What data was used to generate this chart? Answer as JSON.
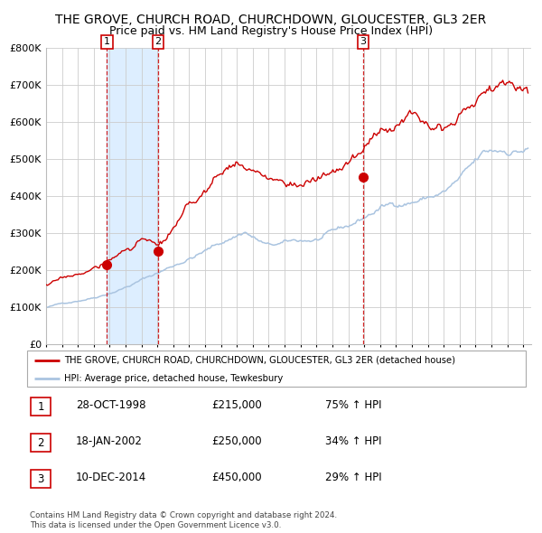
{
  "title": "THE GROVE, CHURCH ROAD, CHURCHDOWN, GLOUCESTER, GL3 2ER",
  "subtitle": "Price paid vs. HM Land Registry's House Price Index (HPI)",
  "title_fontsize": 10,
  "subtitle_fontsize": 9,
  "background_color": "#ffffff",
  "plot_bg_color": "#ffffff",
  "grid_color": "#cccccc",
  "hpi_line_color": "#aac4e0",
  "price_line_color": "#cc0000",
  "sale_marker_color": "#cc0000",
  "dashed_line_color": "#cc0000",
  "shade_color": "#ddeeff",
  "ylim": [
    0,
    800000
  ],
  "yticks": [
    0,
    100000,
    200000,
    300000,
    400000,
    500000,
    600000,
    700000,
    800000
  ],
  "legend_items": [
    "THE GROVE, CHURCH ROAD, CHURCHDOWN, GLOUCESTER, GL3 2ER (detached house)",
    "HPI: Average price, detached house, Tewkesbury"
  ],
  "sales": [
    {
      "date_num": 1998.83,
      "price": 215000,
      "label": "1"
    },
    {
      "date_num": 2002.05,
      "price": 250000,
      "label": "2"
    },
    {
      "date_num": 2014.94,
      "price": 450000,
      "label": "3"
    }
  ],
  "footnote1": "Contains HM Land Registry data © Crown copyright and database right 2024.",
  "footnote2": "This data is licensed under the Open Government Licence v3.0.",
  "table_rows": [
    {
      "num": "1",
      "date": "28-OCT-1998",
      "price": "£215,000",
      "change": "75% ↑ HPI"
    },
    {
      "num": "2",
      "date": "18-JAN-2002",
      "price": "£250,000",
      "change": "34% ↑ HPI"
    },
    {
      "num": "3",
      "date": "10-DEC-2014",
      "price": "£450,000",
      "change": "29% ↑ HPI"
    }
  ]
}
